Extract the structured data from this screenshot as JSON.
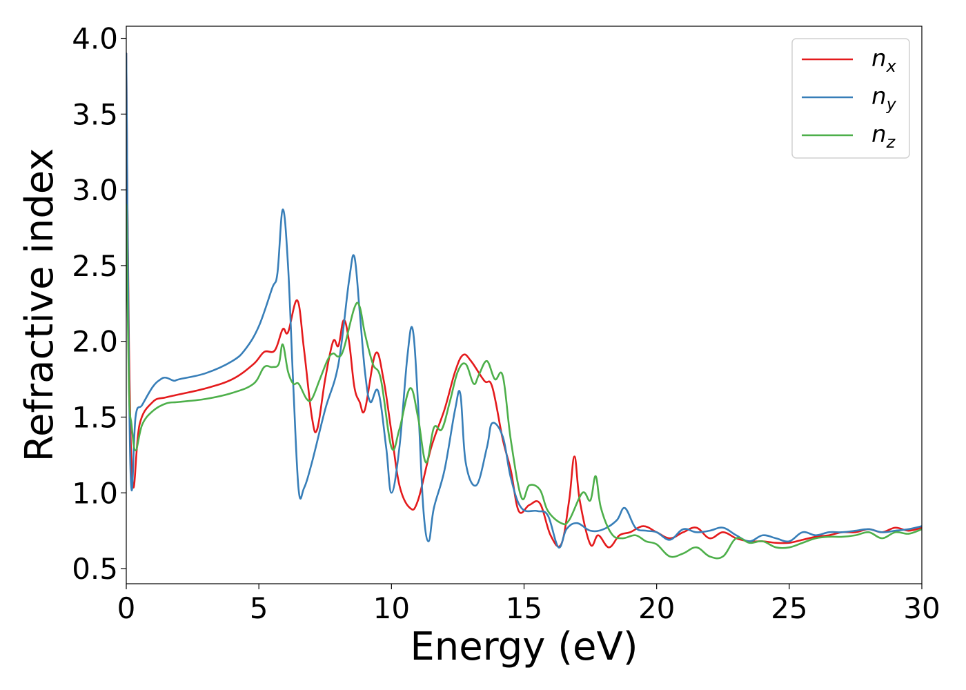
{
  "chart_data": {
    "type": "line",
    "xlabel": "Energy (eV)",
    "ylabel": "Refractive index",
    "xlim": [
      0,
      30
    ],
    "ylim": [
      0.4,
      4.08
    ],
    "x_ticks": [
      0,
      5,
      10,
      15,
      20,
      25,
      30
    ],
    "x_tick_labels": [
      "0",
      "5",
      "10",
      "15",
      "20",
      "25",
      "30"
    ],
    "y_ticks": [
      0.5,
      1.0,
      1.5,
      2.0,
      2.5,
      3.0,
      3.5,
      4.0
    ],
    "y_tick_labels": [
      "0.5",
      "1.0",
      "1.5",
      "2.0",
      "2.5",
      "3.0",
      "3.5",
      "4.0"
    ],
    "grid": false,
    "legend_position": "top-right",
    "series": [
      {
        "name": "n_x",
        "label_main": "n",
        "label_sub": "x",
        "color": "#e41a1c",
        "x": [
          0,
          0.1,
          0.25,
          0.5,
          1,
          1.5,
          2,
          3,
          4,
          4.8,
          5.2,
          5.6,
          5.9,
          6.1,
          6.45,
          6.7,
          7.0,
          7.2,
          7.5,
          7.8,
          8.0,
          8.2,
          8.4,
          8.6,
          8.8,
          9.0,
          9.4,
          9.7,
          10.0,
          10.3,
          10.7,
          11.0,
          11.5,
          12.0,
          12.4,
          12.7,
          13.0,
          13.5,
          13.8,
          14.2,
          14.5,
          14.8,
          15.2,
          15.6,
          16.0,
          16.4,
          16.7,
          16.9,
          17.1,
          17.5,
          17.8,
          18.2,
          18.6,
          19.0,
          19.5,
          20.0,
          20.5,
          21.0,
          21.5,
          22.0,
          22.5,
          23.0,
          23.5,
          24.0,
          24.5,
          25.0,
          25.5,
          26.0,
          26.5,
          27.0,
          27.5,
          28.0,
          28.5,
          29.0,
          29.5,
          30.0
        ],
        "y": [
          3.9,
          2.0,
          1.05,
          1.45,
          1.6,
          1.63,
          1.65,
          1.69,
          1.75,
          1.85,
          1.93,
          1.94,
          2.08,
          2.06,
          2.27,
          1.95,
          1.5,
          1.42,
          1.75,
          2.0,
          1.97,
          2.14,
          2.0,
          1.7,
          1.6,
          1.55,
          1.92,
          1.75,
          1.4,
          1.05,
          0.9,
          0.95,
          1.3,
          1.55,
          1.8,
          1.91,
          1.87,
          1.74,
          1.7,
          1.35,
          1.15,
          0.88,
          0.92,
          0.93,
          0.72,
          0.66,
          0.95,
          1.24,
          0.95,
          0.66,
          0.72,
          0.64,
          0.72,
          0.74,
          0.78,
          0.74,
          0.7,
          0.74,
          0.77,
          0.7,
          0.74,
          0.7,
          0.68,
          0.68,
          0.67,
          0.67,
          0.69,
          0.71,
          0.72,
          0.74,
          0.74,
          0.76,
          0.74,
          0.77,
          0.75,
          0.77
        ]
      },
      {
        "name": "n_y",
        "label_main": "n",
        "label_sub": "y",
        "color": "#377eb8",
        "x": [
          0,
          0.1,
          0.2,
          0.35,
          0.6,
          1.0,
          1.3,
          1.5,
          1.8,
          2.0,
          3.0,
          4.0,
          4.5,
          5.0,
          5.5,
          5.7,
          5.9,
          6.1,
          6.3,
          6.5,
          6.7,
          7.0,
          7.5,
          8.0,
          8.4,
          8.6,
          8.8,
          9.0,
          9.2,
          9.5,
          9.8,
          10.0,
          10.3,
          10.6,
          10.8,
          11.0,
          11.2,
          11.4,
          11.6,
          12.0,
          12.4,
          12.6,
          12.8,
          13.2,
          13.6,
          13.8,
          14.2,
          14.5,
          14.9,
          15.5,
          15.9,
          16.3,
          16.6,
          17.0,
          17.5,
          18.0,
          18.5,
          18.8,
          19.2,
          19.6,
          20.0,
          20.5,
          21.0,
          21.5,
          22.0,
          22.5,
          23.0,
          23.5,
          24.0,
          24.5,
          25.0,
          25.5,
          26.0,
          26.5,
          27.0,
          27.5,
          28.0,
          28.5,
          29.0,
          29.5,
          30.0
        ],
        "y": [
          3.9,
          1.8,
          1.02,
          1.5,
          1.58,
          1.7,
          1.75,
          1.76,
          1.74,
          1.75,
          1.79,
          1.87,
          1.95,
          2.1,
          2.35,
          2.45,
          2.87,
          2.5,
          1.7,
          1.02,
          1.03,
          1.2,
          1.55,
          1.85,
          2.4,
          2.56,
          2.2,
          1.8,
          1.6,
          1.67,
          1.3,
          1.0,
          1.3,
          1.9,
          2.08,
          1.6,
          0.9,
          0.68,
          0.9,
          1.15,
          1.55,
          1.65,
          1.2,
          1.05,
          1.3,
          1.46,
          1.37,
          1.1,
          0.9,
          0.88,
          0.85,
          0.64,
          0.76,
          0.8,
          0.75,
          0.76,
          0.82,
          0.9,
          0.77,
          0.75,
          0.74,
          0.69,
          0.76,
          0.74,
          0.75,
          0.77,
          0.72,
          0.68,
          0.72,
          0.7,
          0.68,
          0.74,
          0.72,
          0.74,
          0.74,
          0.75,
          0.76,
          0.74,
          0.75,
          0.76,
          0.78
        ]
      },
      {
        "name": "n_z",
        "label_main": "n",
        "label_sub": "z",
        "color": "#4daf4a",
        "x": [
          0,
          0.1,
          0.2,
          0.35,
          0.6,
          1.0,
          1.5,
          2.0,
          3.0,
          4.0,
          4.8,
          5.2,
          5.5,
          5.75,
          5.9,
          6.1,
          6.3,
          6.5,
          6.8,
          7.0,
          7.3,
          7.6,
          7.8,
          8.0,
          8.2,
          8.6,
          8.8,
          9.0,
          9.3,
          9.6,
          10.0,
          10.3,
          10.7,
          11.0,
          11.3,
          11.6,
          11.9,
          12.2,
          12.5,
          12.8,
          13.1,
          13.3,
          13.6,
          13.9,
          14.2,
          14.5,
          14.9,
          15.2,
          15.6,
          15.9,
          16.4,
          16.7,
          17.2,
          17.5,
          17.7,
          17.9,
          18.3,
          18.7,
          19.2,
          19.6,
          20.0,
          20.5,
          21.0,
          21.5,
          22.0,
          22.5,
          23.0,
          23.5,
          24.0,
          24.5,
          25.0,
          25.5,
          26.0,
          26.5,
          27.0,
          27.5,
          28.0,
          28.5,
          29.0,
          29.5,
          30.0
        ],
        "y": [
          2.9,
          1.7,
          1.45,
          1.28,
          1.45,
          1.54,
          1.59,
          1.6,
          1.62,
          1.66,
          1.72,
          1.83,
          1.83,
          1.85,
          1.98,
          1.8,
          1.72,
          1.72,
          1.62,
          1.62,
          1.75,
          1.88,
          1.92,
          1.9,
          1.95,
          2.22,
          2.23,
          2.05,
          1.85,
          1.75,
          1.3,
          1.42,
          1.69,
          1.5,
          1.2,
          1.43,
          1.42,
          1.6,
          1.8,
          1.85,
          1.72,
          1.78,
          1.87,
          1.75,
          1.77,
          1.35,
          0.97,
          1.05,
          1.02,
          0.88,
          0.8,
          0.82,
          1.0,
          0.95,
          1.11,
          0.9,
          0.73,
          0.7,
          0.72,
          0.68,
          0.66,
          0.58,
          0.6,
          0.64,
          0.58,
          0.58,
          0.7,
          0.67,
          0.68,
          0.64,
          0.64,
          0.67,
          0.7,
          0.71,
          0.71,
          0.72,
          0.74,
          0.7,
          0.74,
          0.73,
          0.76
        ]
      }
    ]
  }
}
